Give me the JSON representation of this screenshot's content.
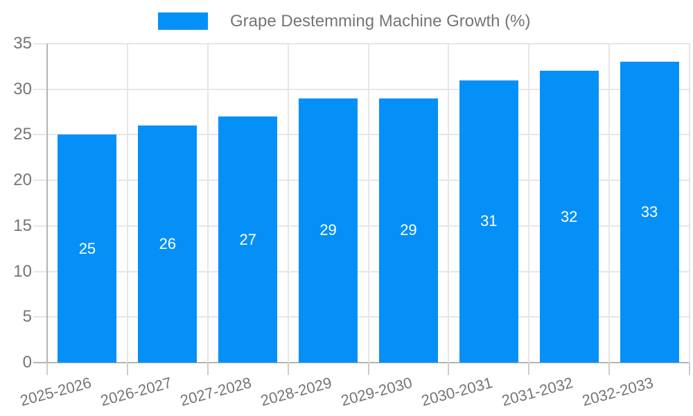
{
  "chart_data": {
    "type": "bar",
    "title": "Grape Destemming Machine Growth (%)",
    "categories": [
      "2025-2026",
      "2026-2027",
      "2027-2028",
      "2028-2029",
      "2029-2030",
      "2030-2031",
      "2031-2032",
      "2032-2033"
    ],
    "values": [
      25,
      26,
      27,
      29,
      29,
      31,
      32,
      33
    ],
    "series": [
      {
        "name": "Grape Destemming Machine Growth (%)",
        "values": [
          25,
          26,
          27,
          29,
          29,
          31,
          32,
          33
        ]
      }
    ],
    "xlabel": "",
    "ylabel": "",
    "ylim": [
      0,
      35
    ],
    "yticks": [
      0,
      5,
      10,
      15,
      20,
      25,
      30,
      35
    ],
    "legend_position": "top",
    "grid": true,
    "bar_labels_shown": true,
    "x_label_rotation_deg": -15,
    "colors": {
      "bar": "#0590f8",
      "bar_value_label": "#ffffff",
      "axis_text": "#757575",
      "legend_text": "#757575",
      "gridline": "#e6e6e6",
      "axis_line": "#b3b3b3",
      "background": "#ffffff"
    }
  }
}
